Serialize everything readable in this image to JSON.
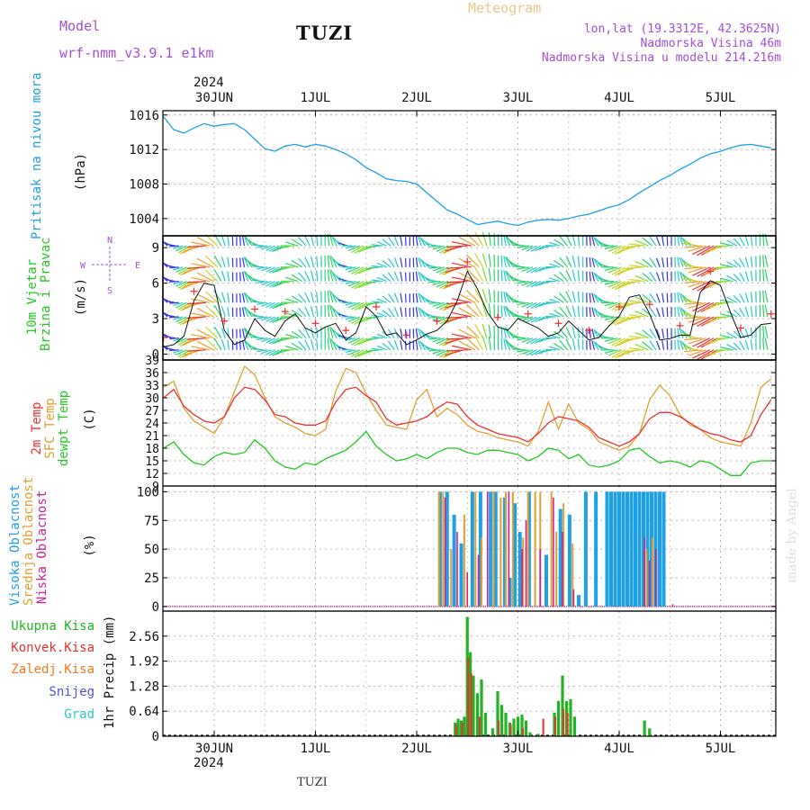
{
  "header": {
    "model_label": "Model",
    "model_name": "wrf-nmm_v3.9.1  e1km",
    "station": "TUZI",
    "meteogram_label": "Meteogram",
    "lonlat": "lon,lat (19.3312E, 42.3625N)",
    "elevation": "Nadmorska Visina 46m",
    "model_elevation": "Nadmorska Visina u modelu 214.216m"
  },
  "footer": {
    "station": "TUZI",
    "credit": "made by Angel"
  },
  "colors": {
    "pressure": "#1ea0e6",
    "temp2m": "#e83232",
    "sfc": "#e0a030",
    "dewpt": "#22c822",
    "cloud_high": "#1ea0e6",
    "cloud_mid": "#e0a030",
    "cloud_low": "#d41e8c",
    "rain_total": "#22b422",
    "rain_conv": "#e83232",
    "rain_strat": "#f07820",
    "snow": "#5050dc",
    "hail": "#30c8c8",
    "purple": "#a050d2"
  },
  "time_axis": {
    "top_year": "2024",
    "bottom_year": "2024",
    "labels": [
      "30JUN",
      "1JUL",
      "2JUL",
      "3JUL",
      "4JUL",
      "5JUL"
    ]
  },
  "chart_data": [
    {
      "type": "line",
      "ylabel": "Pritisak na nivou mora",
      "unit": "(hPa)",
      "yticks": [
        1004,
        1008,
        1012,
        1016
      ],
      "ylim": [
        1002,
        1016.5
      ],
      "x": [
        -0.5,
        -0.4,
        -0.3,
        -0.2,
        -0.1,
        0.0,
        0.1,
        0.2,
        0.3,
        0.4,
        0.5,
        0.6,
        0.7,
        0.8,
        0.9,
        1.0,
        1.1,
        1.2,
        1.3,
        1.4,
        1.5,
        1.6,
        1.7,
        1.8,
        1.9,
        2.0,
        2.1,
        2.2,
        2.3,
        2.4,
        2.5,
        2.6,
        2.7,
        2.8,
        2.9,
        3.0,
        3.1,
        3.2,
        3.3,
        3.4,
        3.5,
        3.6,
        3.7,
        3.8,
        3.9,
        4.0,
        4.1,
        4.2,
        4.3,
        4.4,
        4.5,
        4.6,
        4.7,
        4.8,
        4.9,
        5.0,
        5.1,
        5.2,
        5.3,
        5.4,
        5.5
      ],
      "series": [
        {
          "name": "",
          "values": [
            1015.8,
            1014.3,
            1013.9,
            1014.5,
            1015.0,
            1014.7,
            1014.9,
            1015.0,
            1014.3,
            1013.2,
            1012.1,
            1011.8,
            1012.4,
            1012.6,
            1012.3,
            1012.6,
            1012.4,
            1012.0,
            1011.5,
            1010.8,
            1009.9,
            1009.3,
            1008.6,
            1008.4,
            1008.3,
            1008.0,
            1007.0,
            1006.0,
            1005.0,
            1004.5,
            1003.9,
            1003.3,
            1003.5,
            1003.7,
            1003.4,
            1003.2,
            1003.6,
            1003.8,
            1003.9,
            1003.8,
            1004.0,
            1004.3,
            1004.5,
            1004.9,
            1005.3,
            1005.6,
            1006.2,
            1007.0,
            1007.7,
            1008.4,
            1009.0,
            1009.7,
            1010.3,
            1011.0,
            1011.5,
            1011.8,
            1012.2,
            1012.5,
            1012.6,
            1012.4,
            1012.2
          ]
        }
      ]
    },
    {
      "type": "line",
      "ylabel": "10m Vjetar Brzina i Pravac",
      "unit": "(m/s)",
      "yticks": [
        0,
        3,
        6,
        9
      ],
      "ylim": [
        -0.5,
        10
      ],
      "compass": [
        "N",
        "S",
        "W",
        "E"
      ],
      "x": [
        -0.5,
        -0.4,
        -0.3,
        -0.2,
        -0.1,
        0.0,
        0.1,
        0.2,
        0.3,
        0.4,
        0.5,
        0.6,
        0.7,
        0.8,
        0.9,
        1.0,
        1.1,
        1.2,
        1.3,
        1.4,
        1.5,
        1.6,
        1.7,
        1.8,
        1.9,
        2.0,
        2.1,
        2.2,
        2.3,
        2.4,
        2.5,
        2.6,
        2.7,
        2.8,
        2.9,
        3.0,
        3.1,
        3.2,
        3.3,
        3.4,
        3.5,
        3.6,
        3.7,
        3.8,
        3.9,
        4.0,
        4.1,
        4.2,
        4.3,
        4.4,
        4.5,
        4.6,
        4.7,
        4.8,
        4.9,
        5.0,
        5.1,
        5.2,
        5.3,
        5.4,
        5.5
      ],
      "series": [
        {
          "name": "",
          "values": [
            0.6,
            0.8,
            1.5,
            4.5,
            6.0,
            5.8,
            2.0,
            0.8,
            1.2,
            3.0,
            2.0,
            1.5,
            2.8,
            3.4,
            2.2,
            1.8,
            2.3,
            2.6,
            1.2,
            1.8,
            4.0,
            3.2,
            1.6,
            1.8,
            0.8,
            1.2,
            1.7,
            2.0,
            2.8,
            4.5,
            7.0,
            5.5,
            3.5,
            2.3,
            2.0,
            3.0,
            2.6,
            2.2,
            1.5,
            1.8,
            2.8,
            2.0,
            1.2,
            1.4,
            2.4,
            3.2,
            4.8,
            5.0,
            3.4,
            1.2,
            1.3,
            1.6,
            1.6,
            5.2,
            6.2,
            5.8,
            3.5,
            1.4,
            1.6,
            2.5,
            2.6
          ]
        }
      ]
    },
    {
      "type": "line",
      "ylabels": [
        "2m Temp",
        "SFC Temp",
        "dewpt Temp"
      ],
      "unit": "(C)",
      "yticks": [
        9,
        12,
        15,
        18,
        21,
        24,
        27,
        30,
        33,
        36,
        39
      ],
      "ylim": [
        9,
        39
      ],
      "x": [
        -0.5,
        -0.4,
        -0.3,
        -0.2,
        -0.1,
        0.0,
        0.1,
        0.2,
        0.3,
        0.4,
        0.5,
        0.6,
        0.7,
        0.8,
        0.9,
        1.0,
        1.1,
        1.2,
        1.3,
        1.4,
        1.5,
        1.6,
        1.7,
        1.8,
        1.9,
        2.0,
        2.1,
        2.2,
        2.3,
        2.4,
        2.5,
        2.6,
        2.7,
        2.8,
        2.9,
        3.0,
        3.1,
        3.2,
        3.3,
        3.4,
        3.5,
        3.6,
        3.7,
        3.8,
        3.9,
        4.0,
        4.1,
        4.2,
        4.3,
        4.4,
        4.5,
        4.6,
        4.7,
        4.8,
        4.9,
        5.0,
        5.1,
        5.2,
        5.3,
        5.4,
        5.5
      ],
      "series": [
        {
          "name": "2m Temp",
          "values": [
            30.0,
            32.0,
            28.0,
            26.0,
            24.5,
            24.0,
            25.5,
            30.0,
            32.5,
            32.0,
            29.5,
            26.0,
            25.5,
            24.0,
            23.5,
            23.5,
            24.5,
            29.0,
            32.0,
            32.5,
            30.5,
            29.0,
            25.0,
            23.5,
            24.0,
            24.5,
            25.5,
            27.5,
            29.0,
            28.5,
            25.5,
            23.5,
            22.5,
            21.5,
            21.0,
            20.5,
            19.5,
            21.5,
            24.0,
            25.5,
            25.0,
            24.5,
            23.0,
            20.5,
            19.5,
            18.5,
            19.5,
            21.5,
            25.0,
            26.5,
            26.5,
            25.5,
            24.0,
            22.5,
            21.5,
            21.0,
            20.0,
            19.5,
            21.0,
            26.0,
            29.5
          ]
        },
        {
          "name": "SFC Temp",
          "values": [
            32.5,
            34.0,
            27.5,
            24.5,
            23.0,
            21.5,
            25.5,
            31.5,
            37.5,
            35.5,
            30.0,
            25.5,
            24.0,
            23.0,
            21.5,
            21.0,
            22.5,
            31.5,
            37.0,
            36.0,
            31.0,
            27.0,
            23.5,
            23.0,
            22.5,
            29.5,
            32.0,
            25.5,
            27.5,
            26.0,
            23.5,
            22.0,
            21.5,
            20.5,
            20.0,
            19.5,
            18.5,
            22.0,
            29.0,
            22.5,
            28.5,
            24.0,
            22.5,
            19.5,
            18.5,
            17.5,
            18.5,
            21.5,
            29.5,
            33.0,
            30.5,
            26.0,
            23.5,
            22.5,
            20.5,
            19.5,
            19.0,
            18.5,
            24.0,
            32.5,
            34.5
          ]
        },
        {
          "name": "dewpt Temp",
          "values": [
            18.0,
            19.5,
            16.5,
            14.5,
            14.0,
            16.0,
            17.0,
            16.5,
            17.0,
            20.0,
            18.0,
            15.0,
            13.5,
            13.0,
            14.5,
            14.0,
            15.5,
            16.5,
            17.5,
            19.5,
            22.0,
            18.5,
            16.5,
            15.0,
            15.5,
            16.5,
            15.5,
            17.0,
            18.0,
            18.0,
            17.0,
            16.5,
            17.5,
            17.5,
            17.0,
            16.5,
            15.0,
            16.0,
            18.0,
            17.5,
            15.5,
            16.5,
            14.0,
            13.5,
            14.0,
            15.0,
            17.5,
            18.0,
            16.0,
            14.5,
            15.0,
            14.5,
            13.5,
            15.0,
            14.5,
            13.0,
            11.5,
            11.5,
            14.5,
            15.0,
            15.0
          ]
        }
      ]
    },
    {
      "type": "bar",
      "ylabels": [
        "Visoka Oblacnost",
        "Srednja Oblacnost",
        "Niska Oblacnost"
      ],
      "unit": "(%)",
      "yticks": [
        0,
        25,
        50,
        75,
        100
      ],
      "ylim": [
        -4,
        105
      ],
      "series": [
        {
          "name": "Visoka Oblacnost",
          "x": [
            2.23,
            2.3,
            2.37,
            2.44,
            2.55,
            2.63,
            2.73,
            2.78,
            2.87,
            2.92,
            2.97,
            3.02,
            3.11,
            3.28,
            3.42,
            3.51,
            3.6,
            3.67,
            3.77,
            3.88,
            3.92,
            3.96,
            4.0,
            4.04,
            4.08,
            4.12,
            4.16,
            4.2,
            4.24,
            4.28,
            4.32,
            4.36,
            4.4,
            4.44
          ],
          "values": [
            100,
            100,
            80,
            55,
            100,
            100,
            100,
            100,
            95,
            25,
            90,
            65,
            100,
            45,
            85,
            80,
            10,
            100,
            100,
            100,
            100,
            100,
            100,
            100,
            100,
            100,
            100,
            100,
            100,
            100,
            100,
            100,
            100,
            100
          ]
        },
        {
          "name": "Srednja Oblacnost",
          "x": [
            2.22,
            2.26,
            2.34,
            2.47,
            2.58,
            2.64,
            2.76,
            2.83,
            2.88,
            2.95,
            3.05,
            3.1,
            3.17,
            3.22,
            3.33,
            3.38,
            3.45,
            3.54,
            4.27,
            4.33
          ],
          "values": [
            100,
            100,
            50,
            80,
            100,
            60,
            100,
            95,
            100,
            100,
            60,
            100,
            100,
            100,
            100,
            65,
            90,
            55,
            50,
            60
          ]
        },
        {
          "name": "Niska Oblacnost",
          "x": [
            2.28,
            2.4,
            2.5,
            2.61,
            2.7,
            2.91,
            3.04,
            3.08,
            3.22,
            3.35,
            3.44,
            3.55,
            4.25,
            4.3,
            4.36,
            4.53
          ],
          "values": [
            95,
            65,
            30,
            45,
            100,
            100,
            50,
            75,
            50,
            95,
            65,
            15,
            60,
            40,
            50,
            2
          ]
        }
      ]
    },
    {
      "type": "bar",
      "ylabels": [
        "Ukupna Kisa",
        "Konvek.Kisa",
        "Zaledj.Kisa",
        "Snijeg",
        "Grad"
      ],
      "ylabel": "1hr Precip (mm)",
      "yticks": [
        0,
        0.64,
        1.28,
        1.92,
        2.56
      ],
      "ylim": [
        0,
        3.2
      ],
      "series": [
        {
          "name": "Ukupna Kisa",
          "x": [
            2.38,
            2.41,
            2.44,
            2.47,
            2.5,
            2.53,
            2.56,
            2.6,
            2.64,
            2.68,
            2.75,
            2.8,
            2.84,
            2.88,
            2.92,
            2.96,
            3.0,
            3.04,
            3.08,
            3.12,
            3.2,
            3.36,
            3.4,
            3.44,
            3.48,
            3.52,
            3.56,
            4.25,
            4.3
          ],
          "values": [
            0.35,
            0.45,
            0.4,
            0.5,
            3.05,
            2.15,
            1.55,
            1.1,
            1.45,
            0.6,
            0.2,
            1.15,
            0.8,
            0.6,
            0.35,
            0.45,
            0.5,
            0.55,
            0.4,
            0.1,
            0.06,
            0.6,
            0.9,
            1.55,
            0.9,
            0.95,
            0.5,
            0.4,
            0.2
          ]
        },
        {
          "name": "Konvek.Kisa",
          "x": [
            2.39,
            2.45,
            2.51,
            2.54,
            2.62,
            2.81,
            2.93,
            3.05,
            3.25,
            3.37,
            3.45,
            3.49
          ],
          "values": [
            0.3,
            0.35,
            2.0,
            1.6,
            0.5,
            0.4,
            0.3,
            0.2,
            0.45,
            0.5,
            0.7,
            0.6
          ]
        }
      ]
    }
  ]
}
